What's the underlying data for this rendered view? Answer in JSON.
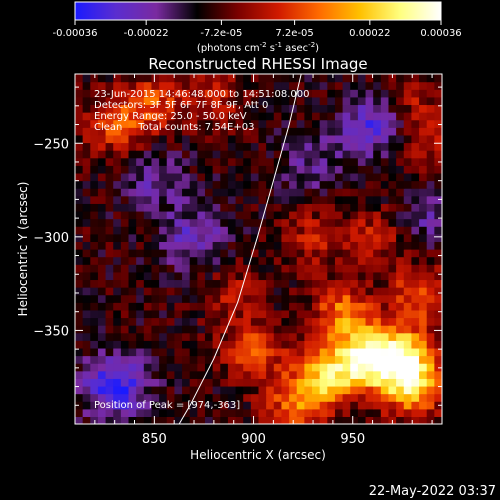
{
  "colorbar": {
    "min": -0.00036,
    "max": 0.00036,
    "ticks": [
      "-0.00036",
      "-0.00022",
      "-7.2e-05",
      "7.2e-05",
      "0.00022",
      "0.00036"
    ],
    "units_label": "(photons cm",
    "units_sup1": "-2",
    "units_mid1": " s",
    "units_sup2": "-1",
    "units_mid2": " asec",
    "units_sup3": "-2",
    "units_end": ")",
    "colormap": [
      "#1a1aff",
      "#5a2dd0",
      "#7a2aa0",
      "#000000",
      "#7a0000",
      "#d01a00",
      "#ff6a00",
      "#ffc000",
      "#ffff80",
      "#ffffff"
    ]
  },
  "chart_data": {
    "type": "heatmap",
    "title": "Reconstructed RHESSI Image",
    "xlabel": "Heliocentric X (arcsec)",
    "ylabel": "Heliocentric Y (arcsec)",
    "xlim": [
      810,
      995
    ],
    "ylim": [
      -400,
      -213
    ],
    "xticks": [
      850,
      900,
      950
    ],
    "xtick_labels": [
      "850",
      "900",
      "950"
    ],
    "yticks": [
      -250,
      -300,
      -350
    ],
    "ytick_labels": [
      "−250",
      "−300",
      "−350"
    ],
    "annotations": {
      "line1": "23-Jun-2015 14:46:48.000 to 14:51:08.000",
      "line2": "Detectors: 3F 5F 6F 7F 8F 9F, Att 0",
      "line3": "Energy Range: 25.0 - 50.0 keV",
      "line4": "Clean     Total counts: 7.54E+03",
      "peak": "Position of Peak = [974,-363]"
    },
    "limb": [
      [
        857,
        -410
      ],
      [
        868,
        -390
      ],
      [
        880,
        -365
      ],
      [
        892,
        -335
      ],
      [
        902,
        -300
      ],
      [
        910,
        -270
      ],
      [
        918,
        -240
      ],
      [
        924,
        -213
      ]
    ],
    "emission_regions": [
      {
        "x": 955,
        "y": -365,
        "value": 0.00036
      },
      {
        "x": 974,
        "y": -363,
        "value": 0.00035
      },
      {
        "x": 935,
        "y": -375,
        "value": 0.00028
      },
      {
        "x": 980,
        "y": -380,
        "value": 0.0003
      },
      {
        "x": 945,
        "y": -340,
        "value": 0.00022
      },
      {
        "x": 985,
        "y": -330,
        "value": 0.0002
      },
      {
        "x": 900,
        "y": -360,
        "value": 0.00018
      },
      {
        "x": 920,
        "y": -390,
        "value": 0.00018
      },
      {
        "x": 960,
        "y": -300,
        "value": 0.00012
      },
      {
        "x": 930,
        "y": -300,
        "value": 0.00012
      },
      {
        "x": 830,
        "y": -240,
        "value": 0.00018
      },
      {
        "x": 850,
        "y": -228,
        "value": 0.00016
      },
      {
        "x": 880,
        "y": -225,
        "value": 0.00012
      },
      {
        "x": 990,
        "y": -250,
        "value": 0.0001
      },
      {
        "x": 980,
        "y": -225,
        "value": 0.0001
      },
      {
        "x": 890,
        "y": -330,
        "value": 0.0001
      },
      {
        "x": 960,
        "y": -240,
        "value": -0.00018
      },
      {
        "x": 870,
        "y": -300,
        "value": -0.00015
      },
      {
        "x": 830,
        "y": -380,
        "value": -0.00025
      },
      {
        "x": 850,
        "y": -270,
        "value": -0.00012
      },
      {
        "x": 930,
        "y": -260,
        "value": -0.0001
      },
      {
        "x": 990,
        "y": -290,
        "value": -0.0001
      }
    ]
  },
  "footer": {
    "timestamp": "22-May-2022 03:37"
  }
}
